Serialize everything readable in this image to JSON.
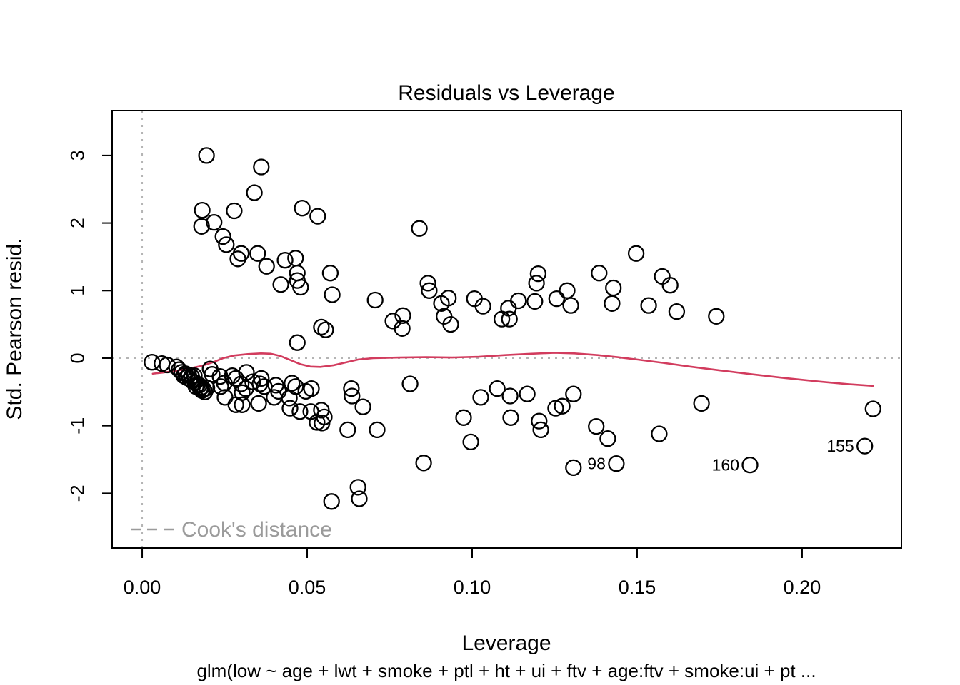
{
  "title": "Residuals vs Leverage",
  "subtitle": "glm(low ~ age + lwt + smoke + ptl + ht + ui + ftv + age:ftv + smoke:ui + pt ...",
  "legend": {
    "label": "Cook's distance"
  },
  "colors": {
    "points": "#000000",
    "smoother": "#d23c5e",
    "reference_dotted": "#b4b4b4",
    "legend_gray": "#9b9b9b",
    "axis": "#000000"
  },
  "chart_data": {
    "type": "scatter",
    "title": "Residuals vs Leverage",
    "xlabel": "Leverage",
    "ylabel": "Std. Pearson resid.",
    "subtitle": "glm(low ~ age + lwt + smoke + ptl + ht + ui + ftv + age:ftv + smoke:ui + pt ...",
    "legend_label": "Cook's distance",
    "legend_style": "gray dashed line, bottom-left inside plot",
    "grid": false,
    "xlim": [
      -0.0091,
      0.2301
    ],
    "ylim": [
      -2.809,
      3.664
    ],
    "x_ticks": [
      0.0,
      0.05,
      0.1,
      0.15,
      0.2
    ],
    "x_tick_labels": [
      "0.00",
      "0.05",
      "0.10",
      "0.15",
      "0.20"
    ],
    "y_ticks": [
      -2,
      -1,
      0,
      1,
      2,
      3
    ],
    "y_tick_labels": [
      "-2",
      "-1",
      "0",
      "1",
      "2",
      "3"
    ],
    "reference_lines": {
      "horizontal_y": 0,
      "vertical_x": 0
    },
    "points": [
      [
        0.0195,
        3.0
      ],
      [
        0.0361,
        2.83
      ],
      [
        0.034,
        2.45
      ],
      [
        0.0182,
        2.19
      ],
      [
        0.0279,
        2.18
      ],
      [
        0.0485,
        2.22
      ],
      [
        0.0532,
        2.1
      ],
      [
        0.018,
        1.95
      ],
      [
        0.0218,
        2.01
      ],
      [
        0.0245,
        1.8
      ],
      [
        0.0255,
        1.68
      ],
      [
        0.03,
        1.55
      ],
      [
        0.029,
        1.47
      ],
      [
        0.035,
        1.55
      ],
      [
        0.0377,
        1.36
      ],
      [
        0.0433,
        1.45
      ],
      [
        0.0465,
        1.48
      ],
      [
        0.047,
        1.26
      ],
      [
        0.047,
        1.15
      ],
      [
        0.048,
        1.05
      ],
      [
        0.042,
        1.09
      ],
      [
        0.057,
        1.26
      ],
      [
        0.0576,
        0.94
      ],
      [
        0.0706,
        0.86
      ],
      [
        0.076,
        0.55
      ],
      [
        0.079,
        0.63
      ],
      [
        0.0788,
        0.44
      ],
      [
        0.0543,
        0.46
      ],
      [
        0.0556,
        0.42
      ],
      [
        0.047,
        0.23
      ],
      [
        0.084,
        1.92
      ],
      [
        0.0866,
        1.11
      ],
      [
        0.087,
        1.0
      ],
      [
        0.0907,
        0.81
      ],
      [
        0.0928,
        0.89
      ],
      [
        0.0915,
        0.62
      ],
      [
        0.0935,
        0.5
      ],
      [
        0.1007,
        0.88
      ],
      [
        0.1033,
        0.77
      ],
      [
        0.111,
        0.74
      ],
      [
        0.109,
        0.58
      ],
      [
        0.1113,
        0.58
      ],
      [
        0.114,
        0.85
      ],
      [
        0.119,
        0.84
      ],
      [
        0.12,
        1.25
      ],
      [
        0.1195,
        1.11
      ],
      [
        0.1256,
        0.88
      ],
      [
        0.1288,
        1.0
      ],
      [
        0.1299,
        0.78
      ],
      [
        0.1385,
        1.26
      ],
      [
        0.1428,
        1.04
      ],
      [
        0.1424,
        0.81
      ],
      [
        0.1497,
        1.55
      ],
      [
        0.1535,
        0.78
      ],
      [
        0.1576,
        1.21
      ],
      [
        0.16,
        1.08
      ],
      [
        0.162,
        0.69
      ],
      [
        0.174,
        0.62
      ],
      [
        0.003,
        -0.06
      ],
      [
        0.006,
        -0.08
      ],
      [
        0.0076,
        -0.1
      ],
      [
        0.0104,
        -0.13
      ],
      [
        0.0112,
        -0.17
      ],
      [
        0.012,
        -0.21
      ],
      [
        0.0126,
        -0.26
      ],
      [
        0.0131,
        -0.23
      ],
      [
        0.0136,
        -0.29
      ],
      [
        0.0141,
        -0.25
      ],
      [
        0.0145,
        -0.31
      ],
      [
        0.015,
        -0.27
      ],
      [
        0.0158,
        -0.26
      ],
      [
        0.0152,
        -0.34
      ],
      [
        0.016,
        -0.36
      ],
      [
        0.0163,
        -0.42
      ],
      [
        0.0168,
        -0.39
      ],
      [
        0.0173,
        -0.4
      ],
      [
        0.0176,
        -0.45
      ],
      [
        0.018,
        -0.43
      ],
      [
        0.0181,
        -0.48
      ],
      [
        0.0186,
        -0.46
      ],
      [
        0.019,
        -0.5
      ],
      [
        0.0196,
        -0.44
      ],
      [
        0.0206,
        -0.16
      ],
      [
        0.0212,
        -0.24
      ],
      [
        0.0236,
        -0.27
      ],
      [
        0.0249,
        -0.37
      ],
      [
        0.0238,
        -0.42
      ],
      [
        0.0273,
        -0.26
      ],
      [
        0.0284,
        -0.3
      ],
      [
        0.03,
        -0.38
      ],
      [
        0.0314,
        -0.45
      ],
      [
        0.0303,
        -0.51
      ],
      [
        0.0316,
        -0.21
      ],
      [
        0.0335,
        -0.35
      ],
      [
        0.0361,
        -0.3
      ],
      [
        0.0357,
        -0.38
      ],
      [
        0.037,
        -0.42
      ],
      [
        0.0353,
        -0.67
      ],
      [
        0.0284,
        -0.69
      ],
      [
        0.0303,
        -0.69
      ],
      [
        0.0251,
        -0.58
      ],
      [
        0.0405,
        -0.4
      ],
      [
        0.0413,
        -0.49
      ],
      [
        0.04,
        -0.58
      ],
      [
        0.0454,
        -0.37
      ],
      [
        0.0465,
        -0.42
      ],
      [
        0.0446,
        -0.59
      ],
      [
        0.0496,
        -0.49
      ],
      [
        0.0513,
        -0.45
      ],
      [
        0.0448,
        -0.74
      ],
      [
        0.0478,
        -0.79
      ],
      [
        0.0511,
        -0.79
      ],
      [
        0.053,
        -0.95
      ],
      [
        0.0543,
        -0.77
      ],
      [
        0.0552,
        -0.87
      ],
      [
        0.0545,
        -0.96
      ],
      [
        0.0634,
        -0.45
      ],
      [
        0.0636,
        -0.56
      ],
      [
        0.0669,
        -0.72
      ],
      [
        0.0623,
        -1.06
      ],
      [
        0.0712,
        -1.06
      ],
      [
        0.0812,
        -0.38
      ],
      [
        0.0853,
        -1.55
      ],
      [
        0.0974,
        -0.88
      ],
      [
        0.0996,
        -1.24
      ],
      [
        0.1026,
        -0.58
      ],
      [
        0.1076,
        -0.45
      ],
      [
        0.1115,
        -0.56
      ],
      [
        0.1167,
        -0.53
      ],
      [
        0.1117,
        -0.88
      ],
      [
        0.1203,
        -0.93
      ],
      [
        0.1208,
        -1.06
      ],
      [
        0.1253,
        -0.74
      ],
      [
        0.1307,
        -0.53
      ],
      [
        0.1273,
        -0.71
      ],
      [
        0.1376,
        -1.01
      ],
      [
        0.1411,
        -1.19
      ],
      [
        0.1307,
        -1.62
      ],
      [
        0.1567,
        -1.12
      ],
      [
        0.1695,
        -0.67
      ],
      [
        0.2215,
        -0.75
      ],
      [
        0.0574,
        -2.12
      ],
      [
        0.0654,
        -1.91
      ],
      [
        0.0658,
        -2.08
      ]
    ],
    "labeled_points": [
      {
        "label": "98",
        "x": 0.1437,
        "y": -1.56
      },
      {
        "label": "160",
        "x": 0.1842,
        "y": -1.58
      },
      {
        "label": "155",
        "x": 0.219,
        "y": -1.3
      }
    ],
    "smoother": [
      [
        0.0032,
        -0.23
      ],
      [
        0.006,
        -0.215
      ],
      [
        0.01,
        -0.19
      ],
      [
        0.014,
        -0.155
      ],
      [
        0.018,
        -0.115
      ],
      [
        0.0215,
        -0.06
      ],
      [
        0.0245,
        0.0
      ],
      [
        0.028,
        0.04
      ],
      [
        0.032,
        0.06
      ],
      [
        0.036,
        0.07
      ],
      [
        0.039,
        0.065
      ],
      [
        0.042,
        0.03
      ],
      [
        0.045,
        -0.03
      ],
      [
        0.048,
        -0.09
      ],
      [
        0.051,
        -0.125
      ],
      [
        0.054,
        -0.13
      ],
      [
        0.058,
        -0.105
      ],
      [
        0.062,
        -0.06
      ],
      [
        0.0655,
        -0.02
      ],
      [
        0.07,
        0.0
      ],
      [
        0.078,
        0.01
      ],
      [
        0.086,
        0.015
      ],
      [
        0.094,
        0.01
      ],
      [
        0.102,
        0.02
      ],
      [
        0.11,
        0.045
      ],
      [
        0.118,
        0.065
      ],
      [
        0.125,
        0.08
      ],
      [
        0.131,
        0.07
      ],
      [
        0.138,
        0.045
      ],
      [
        0.144,
        0.015
      ],
      [
        0.15,
        -0.02
      ],
      [
        0.158,
        -0.07
      ],
      [
        0.166,
        -0.125
      ],
      [
        0.175,
        -0.18
      ],
      [
        0.185,
        -0.24
      ],
      [
        0.195,
        -0.295
      ],
      [
        0.205,
        -0.345
      ],
      [
        0.214,
        -0.385
      ],
      [
        0.2215,
        -0.41
      ]
    ]
  }
}
